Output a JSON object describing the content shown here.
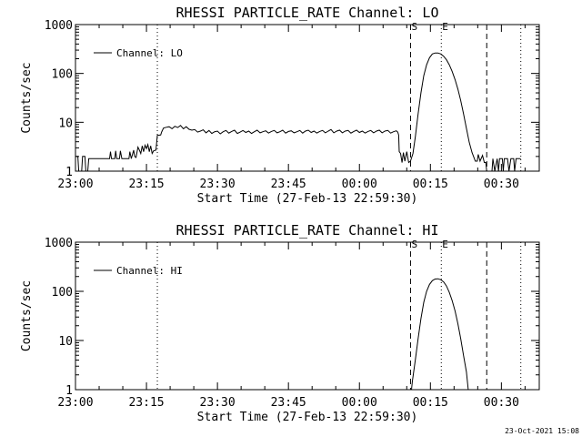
{
  "stamp": "23-Oct-2021 15:08",
  "chart_data": [
    {
      "type": "line",
      "title": "RHESSI PARTICLE_RATE Channel: LO",
      "xlabel": "Start Time (27-Feb-13 22:59:30)",
      "ylabel": "Counts/sec",
      "yscale": "log",
      "ylim": [
        1,
        1000
      ],
      "yticks": [
        "1",
        "10",
        "100",
        "1000"
      ],
      "x_unit": "minutes after 23:00",
      "xlim": [
        0,
        98
      ],
      "xticks": [
        {
          "value": 0,
          "label": "23:00"
        },
        {
          "value": 15,
          "label": "23:15"
        },
        {
          "value": 30,
          "label": "23:30"
        },
        {
          "value": 45,
          "label": "23:45"
        },
        {
          "value": 60,
          "label": "00:00"
        },
        {
          "value": 75,
          "label": "00:15"
        },
        {
          "value": 90,
          "label": "00:30"
        }
      ],
      "legend": {
        "position": "top-left",
        "label": "Channel: LO"
      },
      "markers": [
        {
          "x": 17.3,
          "style": "dotted",
          "label": ""
        },
        {
          "x": 70.8,
          "style": "dashed",
          "label": "S"
        },
        {
          "x": 77.3,
          "style": "dotted",
          "label": "E"
        },
        {
          "x": 86.9,
          "style": "dashed",
          "label": ""
        },
        {
          "x": 94.1,
          "style": "dotted",
          "label": ""
        }
      ],
      "series": [
        {
          "name": "Channel: LO",
          "points": [
            [
              0,
              2
            ],
            [
              0.5,
              2
            ],
            [
              0.7,
              1
            ],
            [
              1.3,
              1
            ],
            [
              1.5,
              2
            ],
            [
              2,
              2
            ],
            [
              2.2,
              1
            ],
            [
              2.6,
              1
            ],
            [
              2.8,
              1.8
            ],
            [
              7.2,
              1.8
            ],
            [
              7.4,
              2.5
            ],
            [
              7.6,
              1.8
            ],
            [
              8.3,
              1.8
            ],
            [
              8.5,
              2.6
            ],
            [
              8.7,
              1.8
            ],
            [
              9.3,
              1.8
            ],
            [
              9.5,
              2.6
            ],
            [
              9.8,
              1.8
            ],
            [
              11.3,
              1.8
            ],
            [
              11.5,
              2.5
            ],
            [
              11.8,
              1.8
            ],
            [
              12.3,
              2.7
            ],
            [
              12.5,
              2.0
            ],
            [
              12.8,
              1.9
            ],
            [
              13.2,
              3.1
            ],
            [
              13.5,
              2.7
            ],
            [
              13.8,
              2.3
            ],
            [
              14.1,
              3.3
            ],
            [
              14.4,
              2.5
            ],
            [
              14.7,
              3.4
            ],
            [
              15.0,
              2.9
            ],
            [
              15.3,
              3.5
            ],
            [
              15.6,
              2.5
            ],
            [
              15.9,
              3.3
            ],
            [
              16.2,
              2.3
            ],
            [
              16.5,
              2.6
            ],
            [
              17.0,
              2.7
            ],
            [
              17.3,
              5.4
            ],
            [
              18.0,
              5.5
            ],
            [
              18.2,
              6.3
            ],
            [
              18.6,
              7.6
            ],
            [
              19.2,
              7.9
            ],
            [
              19.8,
              8.1
            ],
            [
              20.4,
              7.4
            ],
            [
              21.0,
              8.3
            ],
            [
              21.6,
              7.8
            ],
            [
              22.2,
              8.6
            ],
            [
              22.8,
              7.4
            ],
            [
              23.4,
              8.1
            ],
            [
              24.0,
              7.2
            ],
            [
              24.6,
              6.9
            ],
            [
              25.2,
              7.1
            ],
            [
              25.8,
              6.3
            ],
            [
              26.4,
              6.6
            ],
            [
              27.0,
              7.0
            ],
            [
              27.6,
              6.1
            ],
            [
              28.2,
              6.8
            ],
            [
              28.8,
              5.9
            ],
            [
              29.4,
              6.4
            ],
            [
              30.0,
              6.6
            ],
            [
              30.6,
              5.8
            ],
            [
              31.2,
              6.4
            ],
            [
              31.8,
              6.8
            ],
            [
              32.4,
              6.0
            ],
            [
              33.0,
              6.5
            ],
            [
              33.6,
              6.9
            ],
            [
              34.2,
              5.9
            ],
            [
              34.8,
              6.3
            ],
            [
              35.4,
              6.8
            ],
            [
              36.0,
              6.2
            ],
            [
              36.6,
              6.6
            ],
            [
              37.2,
              5.9
            ],
            [
              37.8,
              6.4
            ],
            [
              38.4,
              6.9
            ],
            [
              39.0,
              6.1
            ],
            [
              39.6,
              6.4
            ],
            [
              40.2,
              6.7
            ],
            [
              40.8,
              6.0
            ],
            [
              41.4,
              6.5
            ],
            [
              42.0,
              6.8
            ],
            [
              42.6,
              6.1
            ],
            [
              43.2,
              6.4
            ],
            [
              43.8,
              6.9
            ],
            [
              44.4,
              6.0
            ],
            [
              45.0,
              6.5
            ],
            [
              45.6,
              6.7
            ],
            [
              46.2,
              6.1
            ],
            [
              46.8,
              6.4
            ],
            [
              47.4,
              6.8
            ],
            [
              48.0,
              6.0
            ],
            [
              48.6,
              6.6
            ],
            [
              49.2,
              6.9
            ],
            [
              49.8,
              6.2
            ],
            [
              50.4,
              6.6
            ],
            [
              51.0,
              6.0
            ],
            [
              51.6,
              6.5
            ],
            [
              52.2,
              6.8
            ],
            [
              52.8,
              6.1
            ],
            [
              53.4,
              6.6
            ],
            [
              54.0,
              7.1
            ],
            [
              54.6,
              6.1
            ],
            [
              55.2,
              6.6
            ],
            [
              55.8,
              6.9
            ],
            [
              56.4,
              6.1
            ],
            [
              57.0,
              6.6
            ],
            [
              57.6,
              6.8
            ],
            [
              58.2,
              6.0
            ],
            [
              58.8,
              6.5
            ],
            [
              59.4,
              6.9
            ],
            [
              60.0,
              6.2
            ],
            [
              60.6,
              6.6
            ],
            [
              61.2,
              6.0
            ],
            [
              61.8,
              6.5
            ],
            [
              62.4,
              6.8
            ],
            [
              63.0,
              6.1
            ],
            [
              63.6,
              6.6
            ],
            [
              64.2,
              6.9
            ],
            [
              64.8,
              6.1
            ],
            [
              65.4,
              6.6
            ],
            [
              66.0,
              6.8
            ],
            [
              66.6,
              6.0
            ],
            [
              67.2,
              6.4
            ],
            [
              67.8,
              6.7
            ],
            [
              68.1,
              6.3
            ],
            [
              68.3,
              5.5
            ],
            [
              68.4,
              2.5
            ],
            [
              68.7,
              2.3
            ],
            [
              69.0,
              1.5
            ],
            [
              69.3,
              2.4
            ],
            [
              69.6,
              1.6
            ],
            [
              70.0,
              2.5
            ],
            [
              70.4,
              1.5
            ],
            [
              70.8,
              1.6
            ],
            [
              71.3,
              2.3
            ],
            [
              71.8,
              5
            ],
            [
              72.4,
              15
            ],
            [
              73.0,
              40
            ],
            [
              73.6,
              90
            ],
            [
              74.2,
              150
            ],
            [
              74.8,
              210
            ],
            [
              75.4,
              250
            ],
            [
              76.0,
              262
            ],
            [
              76.6,
              262
            ],
            [
              77.2,
              250
            ],
            [
              77.8,
              225
            ],
            [
              78.4,
              190
            ],
            [
              79.0,
              150
            ],
            [
              79.6,
              110
            ],
            [
              80.2,
              75
            ],
            [
              80.8,
              48
            ],
            [
              81.4,
              28
            ],
            [
              82.0,
              15
            ],
            [
              82.6,
              7.5
            ],
            [
              83.2,
              3.9
            ],
            [
              83.8,
              2.4
            ],
            [
              84.5,
              1.6
            ],
            [
              84.9,
              1.6
            ],
            [
              85.1,
              2.2
            ],
            [
              85.5,
              1.6
            ],
            [
              86.0,
              2.1
            ],
            [
              86.4,
              1.5
            ],
            [
              86.7,
              1.5
            ],
            [
              86.9,
              1.0
            ],
            [
              88.0,
              1.0
            ],
            [
              88.2,
              1.8
            ],
            [
              88.6,
              1.0
            ],
            [
              89.1,
              1.8
            ],
            [
              89.4,
              1.0
            ],
            [
              89.6,
              1.8
            ],
            [
              90.2,
              1.8
            ],
            [
              90.4,
              1.0
            ],
            [
              90.6,
              1.8
            ],
            [
              91.3,
              1.8
            ],
            [
              91.6,
              1.0
            ],
            [
              92.0,
              1.8
            ],
            [
              92.6,
              1.8
            ],
            [
              92.8,
              1.0
            ],
            [
              93.1,
              1.8
            ],
            [
              93.8,
              1.8
            ],
            [
              94.1,
              1.8
            ]
          ]
        }
      ]
    },
    {
      "type": "line",
      "title": "RHESSI PARTICLE_RATE Channel: HI",
      "xlabel": "Start Time (27-Feb-13 22:59:30)",
      "ylabel": "Counts/sec",
      "yscale": "log",
      "ylim": [
        1,
        1000
      ],
      "yticks": [
        "1",
        "10",
        "100",
        "1000"
      ],
      "x_unit": "minutes after 23:00",
      "xlim": [
        0,
        98
      ],
      "xticks": [
        {
          "value": 0,
          "label": "23:00"
        },
        {
          "value": 15,
          "label": "23:15"
        },
        {
          "value": 30,
          "label": "23:30"
        },
        {
          "value": 45,
          "label": "23:45"
        },
        {
          "value": 60,
          "label": "00:00"
        },
        {
          "value": 75,
          "label": "00:15"
        },
        {
          "value": 90,
          "label": "00:30"
        }
      ],
      "legend": {
        "position": "top-left",
        "label": "Channel: HI"
      },
      "markers": [
        {
          "x": 17.3,
          "style": "dotted",
          "label": ""
        },
        {
          "x": 70.8,
          "style": "dashed",
          "label": "S"
        },
        {
          "x": 77.3,
          "style": "dotted",
          "label": "E"
        },
        {
          "x": 86.9,
          "style": "dashed",
          "label": ""
        },
        {
          "x": 94.1,
          "style": "dotted",
          "label": ""
        }
      ],
      "series": [
        {
          "name": "Channel: HI",
          "points": [
            [
              71.0,
              1.0
            ],
            [
              71.2,
              1.5
            ],
            [
              71.8,
              4
            ],
            [
              72.4,
              11
            ],
            [
              73.0,
              28
            ],
            [
              73.6,
              60
            ],
            [
              74.2,
              100
            ],
            [
              74.8,
              138
            ],
            [
              75.4,
              165
            ],
            [
              76.0,
              178
            ],
            [
              76.6,
              180
            ],
            [
              77.2,
              172
            ],
            [
              77.8,
              155
            ],
            [
              78.4,
              128
            ],
            [
              79.0,
              95
            ],
            [
              79.6,
              65
            ],
            [
              80.2,
              40
            ],
            [
              80.8,
              22
            ],
            [
              81.4,
              11
            ],
            [
              82.0,
              5
            ],
            [
              82.6,
              2.3
            ],
            [
              83.0,
              1.0
            ]
          ]
        }
      ]
    }
  ]
}
